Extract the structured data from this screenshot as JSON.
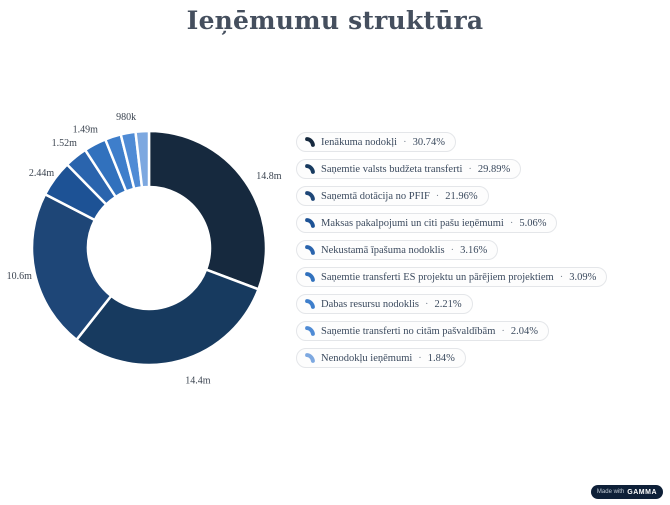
{
  "header": {
    "title": "Ieņēmumu struktūra"
  },
  "chart_data": {
    "type": "pie",
    "subtype": "donut",
    "title": "Ieņēmumu struktūra",
    "direction": "clockwise",
    "start_angle_deg": 0,
    "legend_position": "right",
    "legend_separator": "·",
    "series": [
      {
        "label": "Ienākuma nodokļi",
        "percent": 30.74,
        "percent_label": "30.74%",
        "value_label": "14.8m",
        "show_value_label": true,
        "color": "#16293e"
      },
      {
        "label": "Saņemtie valsts budžeta transferti",
        "percent": 29.89,
        "percent_label": "29.89%",
        "value_label": "14.4m",
        "show_value_label": true,
        "color": "#173a5f"
      },
      {
        "label": "Saņemtā dotācija no PFIF",
        "percent": 21.96,
        "percent_label": "21.96%",
        "value_label": "10.6m",
        "show_value_label": true,
        "color": "#1e4677"
      },
      {
        "label": "Maksas pakalpojumi un citi pašu ieņēmumi",
        "percent": 5.06,
        "percent_label": "5.06%",
        "value_label": "2.44m",
        "show_value_label": true,
        "color": "#1d5295"
      },
      {
        "label": "Nekustamā īpašuma nodoklis",
        "percent": 3.16,
        "percent_label": "3.16%",
        "value_label": "1.52m",
        "show_value_label": true,
        "color": "#2a64ad"
      },
      {
        "label": "Saņemtie transferti ES projektu un pārējiem projektiem",
        "percent": 3.09,
        "percent_label": "3.09%",
        "value_label": "1.49m",
        "show_value_label": true,
        "color": "#3171bd"
      },
      {
        "label": "Dabas resursu nodoklis",
        "percent": 2.21,
        "percent_label": "2.21%",
        "value_label": "",
        "show_value_label": false,
        "color": "#3e7ecb"
      },
      {
        "label": "Saņemtie transferti no citām pašvaldībām",
        "percent": 2.04,
        "percent_label": "2.04%",
        "value_label": "980k",
        "show_value_label": true,
        "color": "#4f8bd5"
      },
      {
        "label": "Nenodokļu ieņēmumi",
        "percent": 1.84,
        "percent_label": "1.84%",
        "value_label": "",
        "show_value_label": false,
        "color": "#7da8e0"
      }
    ]
  },
  "badge": {
    "made_with": "Made with",
    "brand": "GAMMA"
  }
}
